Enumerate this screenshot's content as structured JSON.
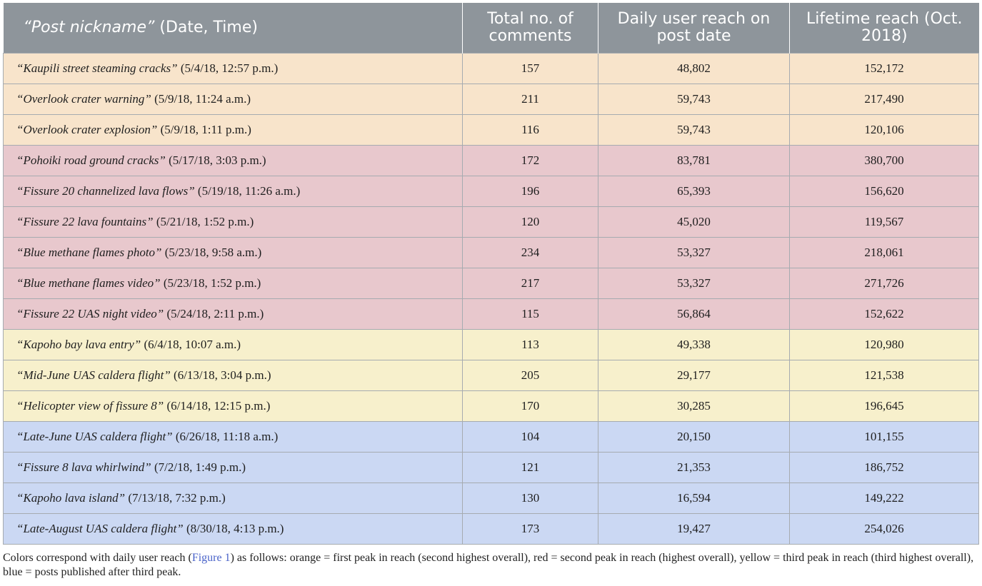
{
  "header": {
    "col0_italic": "“Post nickname”",
    "col0_rest": " (Date, Time)",
    "col1": "Total no. of comments",
    "col2": "Daily user reach on post date",
    "col3": "Lifetime reach (Oct. 2018)"
  },
  "row_colors": {
    "orange": "#f8e4cb",
    "red": "#e8c8cd",
    "yellow": "#f7f0cc",
    "blue": "#cbd8f3",
    "header": "#8e959b"
  },
  "rows": [
    {
      "group": "orange",
      "nickname": "“Kaupili street steaming cracks”",
      "datetime": " (5/4/18, 12:57 p.m.)",
      "comments": "157",
      "daily": "48,802",
      "lifetime": "152,172"
    },
    {
      "group": "orange",
      "nickname": "“Overlook crater warning”",
      "datetime": " (5/9/18, 11:24 a.m.)",
      "comments": "211",
      "daily": "59,743",
      "lifetime": "217,490"
    },
    {
      "group": "orange",
      "nickname": "“Overlook crater explosion”",
      "datetime": " (5/9/18, 1:11 p.m.)",
      "comments": "116",
      "daily": "59,743",
      "lifetime": "120,106"
    },
    {
      "group": "red",
      "nickname": "“Pohoiki road ground cracks”",
      "datetime": " (5/17/18, 3:03 p.m.)",
      "comments": "172",
      "daily": "83,781",
      "lifetime": "380,700"
    },
    {
      "group": "red",
      "nickname": "“Fissure 20 channelized lava flows”",
      "datetime": " (5/19/18, 11:26 a.m.)",
      "comments": "196",
      "daily": "65,393",
      "lifetime": "156,620"
    },
    {
      "group": "red",
      "nickname": "“Fissure 22 lava fountains”",
      "datetime": " (5/21/18, 1:52 p.m.)",
      "comments": "120",
      "daily": "45,020",
      "lifetime": "119,567"
    },
    {
      "group": "red",
      "nickname": "“Blue methane flames photo”",
      "datetime": " (5/23/18, 9:58 a.m.)",
      "comments": "234",
      "daily": "53,327",
      "lifetime": "218,061"
    },
    {
      "group": "red",
      "nickname": "“Blue methane flames video”",
      "datetime": " (5/23/18, 1:52 p.m.)",
      "comments": "217",
      "daily": "53,327",
      "lifetime": "271,726"
    },
    {
      "group": "red",
      "nickname": "“Fissure 22 UAS night video”",
      "datetime": " (5/24/18, 2:11 p.m.)",
      "comments": "115",
      "daily": "56,864",
      "lifetime": "152,622"
    },
    {
      "group": "yellow",
      "nickname": "“Kapoho bay lava entry”",
      "datetime": " (6/4/18, 10:07 a.m.)",
      "comments": "113",
      "daily": "49,338",
      "lifetime": "120,980"
    },
    {
      "group": "yellow",
      "nickname": "“Mid-June UAS caldera flight”",
      "datetime": " (6/13/18, 3:04 p.m.)",
      "comments": "205",
      "daily": "29,177",
      "lifetime": "121,538"
    },
    {
      "group": "yellow",
      "nickname": "“Helicopter view of fissure 8”",
      "datetime": " (6/14/18, 12:15 p.m.)",
      "comments": "170",
      "daily": "30,285",
      "lifetime": "196,645"
    },
    {
      "group": "blue",
      "nickname": "“Late-June UAS caldera flight”",
      "datetime": " (6/26/18, 11:18 a.m.)",
      "comments": "104",
      "daily": "20,150",
      "lifetime": "101,155"
    },
    {
      "group": "blue",
      "nickname": "“Fissure 8 lava whirlwind”",
      "datetime": " (7/2/18, 1:49 p.m.)",
      "comments": "121",
      "daily": "21,353",
      "lifetime": "186,752"
    },
    {
      "group": "blue",
      "nickname": "“Kapoho lava island”",
      "datetime": " (7/13/18, 7:32 p.m.)",
      "comments": "130",
      "daily": "16,594",
      "lifetime": "149,222"
    },
    {
      "group": "blue",
      "nickname": "“Late-August UAS caldera flight”",
      "datetime": " (8/30/18, 4:13 p.m.)",
      "comments": "173",
      "daily": "19,427",
      "lifetime": "254,026"
    }
  ],
  "footnote": {
    "before": "Colors correspond with daily user reach (",
    "link": "Figure 1",
    "after": ") as follows: orange = first peak in reach (second highest overall), red = second peak in reach (highest overall), yellow = third peak in reach (third highest overall), blue = posts published after third peak."
  }
}
